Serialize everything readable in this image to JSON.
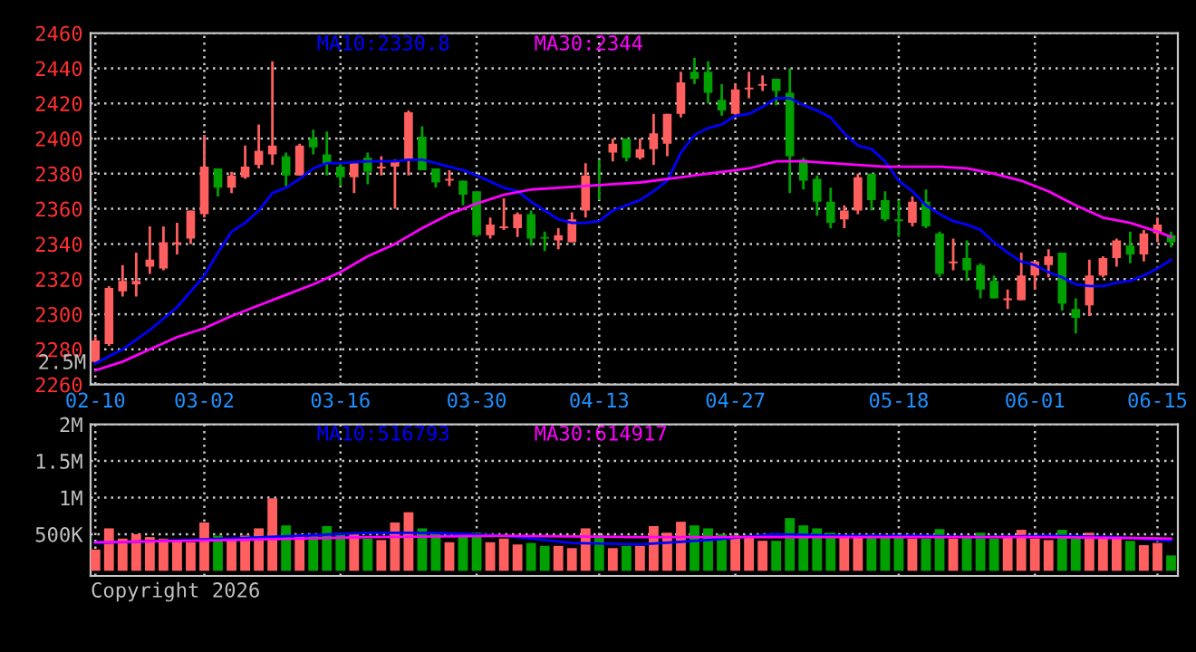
{
  "chart_data": [
    {
      "type": "candlestick",
      "categories": [
        "02-10",
        null,
        null,
        null,
        null,
        null,
        null,
        null,
        "03-02",
        null,
        null,
        null,
        null,
        null,
        null,
        null,
        null,
        null,
        "03-16",
        null,
        null,
        null,
        null,
        null,
        null,
        null,
        null,
        null,
        "03-30",
        null,
        null,
        null,
        null,
        null,
        null,
        null,
        null,
        "04-13",
        null,
        null,
        null,
        null,
        null,
        null,
        null,
        null,
        null,
        "04-27",
        null,
        null,
        null,
        null,
        null,
        null,
        null,
        null,
        null,
        null,
        null,
        "05-18",
        null,
        null,
        null,
        null,
        null,
        null,
        null,
        null,
        null,
        "06-01",
        null,
        null,
        null,
        null,
        null,
        null,
        null,
        null,
        "06-15",
        null
      ],
      "ohlc": [
        [
          2273,
          2287,
          2272,
          2285
        ],
        [
          2283,
          2316,
          2282,
          2315
        ],
        [
          2313,
          2328,
          2310,
          2319
        ],
        [
          2317,
          2335,
          2310,
          2319
        ],
        [
          2327,
          2350,
          2323,
          2331
        ],
        [
          2326,
          2350,
          2325,
          2341
        ],
        [
          2340,
          2352,
          2334,
          2341
        ],
        [
          2343,
          2359,
          2340,
          2359
        ],
        [
          2357,
          2402,
          2355,
          2384
        ],
        [
          2383,
          2383,
          2367,
          2372
        ],
        [
          2372,
          2381,
          2369,
          2379
        ],
        [
          2378,
          2396,
          2377,
          2384
        ],
        [
          2385,
          2408,
          2383,
          2393
        ],
        [
          2391,
          2444,
          2385,
          2396
        ],
        [
          2390,
          2392,
          2373,
          2379
        ],
        [
          2379,
          2397,
          2379,
          2396
        ],
        [
          2400,
          2405,
          2391,
          2395
        ],
        [
          2391,
          2404,
          2379,
          2386
        ],
        [
          2384,
          2386,
          2373,
          2378
        ],
        [
          2378,
          2387,
          2369,
          2386
        ],
        [
          2389,
          2392,
          2374,
          2381
        ],
        [
          2383,
          2390,
          2379,
          2384
        ],
        [
          2384,
          2388,
          2360,
          2387
        ],
        [
          2388,
          2416,
          2379,
          2415
        ],
        [
          2401,
          2407,
          2382,
          2382
        ],
        [
          2383,
          2383,
          2372,
          2375
        ],
        [
          2376,
          2382,
          2373,
          2377
        ],
        [
          2376,
          2376,
          2362,
          2368
        ],
        [
          2370,
          2370,
          2344,
          2345
        ],
        [
          2345,
          2355,
          2343,
          2351
        ],
        [
          2349,
          2366,
          2348,
          2350
        ],
        [
          2349,
          2358,
          2344,
          2357
        ],
        [
          2357,
          2359,
          2339,
          2343
        ],
        [
          2344,
          2347,
          2336,
          2343
        ],
        [
          2342,
          2349,
          2337,
          2345
        ],
        [
          2341,
          2358,
          2341,
          2354
        ],
        [
          2359,
          2386,
          2355,
          2379
        ],
        [
          2374,
          2388,
          2365,
          2373
        ],
        [
          2392,
          2400,
          2387,
          2397
        ],
        [
          2400,
          2400,
          2387,
          2389
        ],
        [
          2389,
          2400,
          2388,
          2394
        ],
        [
          2394,
          2414,
          2385,
          2403
        ],
        [
          2397,
          2414,
          2390,
          2414
        ],
        [
          2414,
          2438,
          2412,
          2432
        ],
        [
          2438,
          2446,
          2431,
          2434
        ],
        [
          2438,
          2444,
          2420,
          2426
        ],
        [
          2422,
          2431,
          2413,
          2416
        ],
        [
          2414,
          2431,
          2413,
          2428
        ],
        [
          2428,
          2438,
          2423,
          2429
        ],
        [
          2430,
          2436,
          2427,
          2431
        ],
        [
          2434,
          2434,
          2419,
          2427
        ],
        [
          2426,
          2440,
          2369,
          2390
        ],
        [
          2388,
          2389,
          2371,
          2376
        ],
        [
          2377,
          2379,
          2356,
          2364
        ],
        [
          2364,
          2372,
          2349,
          2352
        ],
        [
          2354,
          2362,
          2349,
          2359
        ],
        [
          2359,
          2380,
          2357,
          2378
        ],
        [
          2380,
          2380,
          2359,
          2365
        ],
        [
          2365,
          2370,
          2353,
          2354
        ],
        [
          2354,
          2365,
          2344,
          2353
        ],
        [
          2352,
          2367,
          2350,
          2364
        ],
        [
          2364,
          2371,
          2349,
          2350
        ],
        [
          2346,
          2347,
          2321,
          2323
        ],
        [
          2329,
          2343,
          2325,
          2330
        ],
        [
          2332,
          2342,
          2319,
          2325
        ],
        [
          2328,
          2329,
          2309,
          2314
        ],
        [
          2319,
          2322,
          2309,
          2309
        ],
        [
          2308,
          2314,
          2303,
          2309
        ],
        [
          2308,
          2335,
          2308,
          2322
        ],
        [
          2322,
          2330,
          2314,
          2330
        ],
        [
          2328,
          2337,
          2321,
          2333
        ],
        [
          2335,
          2335,
          2302,
          2306
        ],
        [
          2303,
          2309,
          2289,
          2298
        ],
        [
          2305,
          2331,
          2299,
          2322
        ],
        [
          2322,
          2333,
          2321,
          2332
        ],
        [
          2332,
          2343,
          2327,
          2342
        ],
        [
          2339,
          2347,
          2329,
          2334
        ],
        [
          2334,
          2348,
          2330,
          2346
        ],
        [
          2346,
          2355,
          2341,
          2351
        ],
        [
          2345,
          2347,
          2338,
          2341
        ]
      ],
      "colors": [
        "#ff5f5f",
        "#ff5f5f",
        "#ff5f5f",
        "#ff5f5f",
        "#ff5f5f",
        "#ff5f5f",
        "#ff5f5f",
        "#ff5f5f",
        "#ff5f5f",
        "#00a000",
        "#ff5f5f",
        "#ff5f5f",
        "#ff5f5f",
        "#ff5f5f",
        "#00a000",
        "#ff5f5f",
        "#00a000",
        "#00a000",
        "#00a000",
        "#ff5f5f",
        "#00a000",
        "#ff5f5f",
        "#ff5f5f",
        "#ff5f5f",
        "#00a000",
        "#00a000",
        "#ff5f5f",
        "#00a000",
        "#00a000",
        "#ff5f5f",
        "#ff5f5f",
        "#ff5f5f",
        "#00a000",
        "#00a000",
        "#ff5f5f",
        "#ff5f5f",
        "#ff5f5f",
        "#00a000",
        "#ff5f5f",
        "#00a000",
        "#ff5f5f",
        "#ff5f5f",
        "#ff5f5f",
        "#ff5f5f",
        "#00a000",
        "#00a000",
        "#00a000",
        "#ff5f5f",
        "#ff5f5f",
        "#ff5f5f",
        "#00a000",
        "#00a000",
        "#00a000",
        "#00a000",
        "#00a000",
        "#ff5f5f",
        "#ff5f5f",
        "#00a000",
        "#00a000",
        "#00a000",
        "#ff5f5f",
        "#00a000",
        "#00a000",
        "#ff5f5f",
        "#00a000",
        "#00a000",
        "#00a000",
        "#ff5f5f",
        "#ff5f5f",
        "#ff5f5f",
        "#ff5f5f",
        "#00a000",
        "#00a000",
        "#ff5f5f",
        "#ff5f5f",
        "#ff5f5f",
        "#00a000",
        "#ff5f5f",
        "#ff5f5f",
        "#00a000"
      ],
      "series": [
        {
          "type": "line",
          "name": "MA10:2330.8",
          "color": "#0000ff",
          "values": [
            2272,
            null,
            2280,
            null,
            2291,
            null,
            2304,
            null,
            2322,
            2335,
            2347,
            2352,
            2359,
            2369,
            2372,
            2377,
            2383,
            2386,
            2386,
            null,
            2387,
            null,
            2387,
            2388,
            2388,
            null,
            2384,
            2382,
            2379,
            null,
            2372,
            2370,
            2364,
            2359,
            2354,
            2352,
            2352,
            2353,
            2359,
            null,
            2365,
            2370,
            2376,
            2392,
            2402,
            2406,
            2408,
            2413,
            2414,
            2418,
            2423,
            2423,
            2419,
            2416,
            2412,
            2403,
            2396,
            2394,
            2387,
            2376,
            2370,
            2362,
            2357,
            2353,
            2351,
            2348,
            2341,
            2335,
            2330,
            2328,
            2324,
            2321,
            2317,
            2316,
            2316,
            2318,
            2319,
            2322,
            2326,
            2331
          ]
        },
        {
          "type": "line",
          "name": "MA30:2344",
          "color": "#ff00ff",
          "values": [
            2268,
            null,
            2273,
            null,
            2280,
            null,
            2287,
            null,
            2292,
            null,
            2299,
            null,
            2305,
            null,
            2311,
            null,
            2317,
            null,
            2324,
            null,
            2333,
            null,
            2340,
            null,
            2349,
            null,
            2357,
            null,
            2363,
            null,
            2368,
            null,
            2371,
            null,
            2372,
            null,
            2373,
            null,
            2374,
            null,
            2375,
            null,
            2377,
            null,
            2379,
            null,
            2381,
            null,
            2383,
            null,
            2387,
            null,
            2387,
            null,
            2386,
            null,
            2385,
            null,
            2384,
            null,
            2384,
            null,
            2384,
            null,
            2383,
            null,
            2380,
            null,
            2376,
            null,
            2370,
            null,
            2362,
            null,
            2355,
            null,
            2352,
            null,
            2347,
            2344
          ]
        }
      ],
      "ylim": [
        2260,
        2460
      ],
      "yticks": [
        2260,
        2280,
        2300,
        2320,
        2340,
        2360,
        2380,
        2400,
        2420,
        2440,
        2460
      ],
      "grid": true,
      "legend": "top",
      "annotations": [
        "2.5M"
      ]
    },
    {
      "type": "bar",
      "categories": [
        null,
        null,
        null,
        null,
        null,
        null,
        null,
        null,
        null,
        null,
        null,
        null,
        null,
        null,
        null,
        null,
        null,
        null,
        null,
        null,
        null,
        null,
        null,
        null,
        null,
        null,
        null,
        null,
        null,
        null,
        null,
        null,
        null,
        null,
        null,
        null,
        null,
        null,
        null,
        null,
        null,
        null,
        null,
        null,
        null,
        null,
        null,
        null,
        null,
        null,
        null,
        null,
        null,
        null,
        null,
        null,
        null,
        null,
        null,
        null,
        null,
        null,
        null,
        null,
        null,
        null,
        null,
        null,
        null,
        null,
        null,
        null,
        null,
        null,
        null,
        null,
        null,
        null,
        null,
        null
      ],
      "series": [
        {
          "type": "bar",
          "colors": [
            "#ff5f5f",
            "#ff5f5f",
            "#ff5f5f",
            "#ff5f5f",
            "#ff5f5f",
            "#ff5f5f",
            "#ff5f5f",
            "#ff5f5f",
            "#ff5f5f",
            "#00a000",
            "#ff5f5f",
            "#ff5f5f",
            "#ff5f5f",
            "#ff5f5f",
            "#00a000",
            "#ff5f5f",
            "#00a000",
            "#00a000",
            "#00a000",
            "#ff5f5f",
            "#00a000",
            "#ff5f5f",
            "#ff5f5f",
            "#ff5f5f",
            "#00a000",
            "#00a000",
            "#ff5f5f",
            "#00a000",
            "#00a000",
            "#ff5f5f",
            "#ff5f5f",
            "#ff5f5f",
            "#00a000",
            "#00a000",
            "#ff5f5f",
            "#ff5f5f",
            "#ff5f5f",
            "#00a000",
            "#ff5f5f",
            "#00a000",
            "#ff5f5f",
            "#ff5f5f",
            "#ff5f5f",
            "#ff5f5f",
            "#00a000",
            "#00a000",
            "#00a000",
            "#ff5f5f",
            "#ff5f5f",
            "#ff5f5f",
            "#00a000",
            "#00a000",
            "#00a000",
            "#00a000",
            "#00a000",
            "#ff5f5f",
            "#ff5f5f",
            "#00a000",
            "#00a000",
            "#00a000",
            "#ff5f5f",
            "#00a000",
            "#00a000",
            "#ff5f5f",
            "#00a000",
            "#00a000",
            "#00a000",
            "#ff5f5f",
            "#ff5f5f",
            "#ff5f5f",
            "#ff5f5f",
            "#00a000",
            "#00a000",
            "#ff5f5f",
            "#ff5f5f",
            "#ff5f5f",
            "#00a000",
            "#ff5f5f",
            "#ff5f5f",
            "#00a000"
          ],
          "values": [
            290000,
            580000,
            440000,
            500000,
            460000,
            440000,
            420000,
            390000,
            660000,
            480000,
            440000,
            480000,
            580000,
            990000,
            620000,
            500000,
            500000,
            610000,
            500000,
            520000,
            440000,
            420000,
            660000,
            800000,
            580000,
            520000,
            390000,
            500000,
            520000,
            390000,
            440000,
            360000,
            380000,
            340000,
            340000,
            310000,
            580000,
            480000,
            310000,
            340000,
            340000,
            610000,
            520000,
            670000,
            620000,
            580000,
            500000,
            480000,
            480000,
            410000,
            410000,
            720000,
            620000,
            580000,
            520000,
            480000,
            480000,
            460000,
            460000,
            480000,
            440000,
            440000,
            570000,
            440000,
            460000,
            520000,
            440000,
            460000,
            560000,
            440000,
            420000,
            560000,
            440000,
            520000,
            440000,
            460000,
            410000,
            350000,
            380000,
            210000
          ]
        },
        {
          "type": "line",
          "name": "MA10:516793",
          "color": "#0000ff",
          "values": [
            380000,
            null,
            null,
            null,
            null,
            null,
            null,
            null,
            null,
            null,
            440000,
            null,
            null,
            null,
            null,
            null,
            null,
            null,
            null,
            null,
            520000,
            null,
            null,
            null,
            null,
            520000,
            null,
            null,
            null,
            null,
            480000,
            null,
            null,
            null,
            null,
            380000,
            null,
            null,
            null,
            null,
            360000,
            null,
            null,
            null,
            null,
            420000,
            null,
            null,
            null,
            null,
            500000,
            null,
            null,
            null,
            null,
            480000,
            null,
            null,
            null,
            null,
            480000,
            null,
            null,
            null,
            null,
            460000,
            null,
            null,
            null,
            null,
            480000,
            null,
            null,
            null,
            null,
            460000,
            null,
            null,
            null,
            410000
          ]
        },
        {
          "type": "line",
          "name": "MA30:614917",
          "color": "#ff00ff",
          "values": [
            390000,
            null,
            null,
            null,
            null,
            null,
            null,
            null,
            null,
            null,
            420000,
            null,
            null,
            null,
            null,
            null,
            null,
            null,
            null,
            null,
            460000,
            null,
            null,
            null,
            null,
            null,
            null,
            null,
            null,
            null,
            480000,
            null,
            null,
            null,
            null,
            null,
            null,
            null,
            null,
            null,
            460000,
            null,
            null,
            null,
            null,
            null,
            null,
            null,
            null,
            null,
            460000,
            null,
            null,
            null,
            null,
            null,
            null,
            null,
            null,
            null,
            460000,
            null,
            null,
            null,
            null,
            null,
            null,
            null,
            null,
            null,
            460000,
            null,
            null,
            null,
            null,
            null,
            null,
            null,
            null,
            440000
          ]
        }
      ],
      "ylim": [
        -70000,
        2000000
      ],
      "yticks": [
        {
          "value": 500000,
          "label": "500K"
        },
        {
          "value": 1000000,
          "label": "1M"
        },
        {
          "value": 1500000,
          "label": "1.5M"
        },
        {
          "value": 2000000,
          "label": "2M"
        }
      ],
      "grid": true,
      "legend": "top",
      "tick_labels": "y",
      "annotations": [
        "Copyright 2026"
      ]
    }
  ]
}
